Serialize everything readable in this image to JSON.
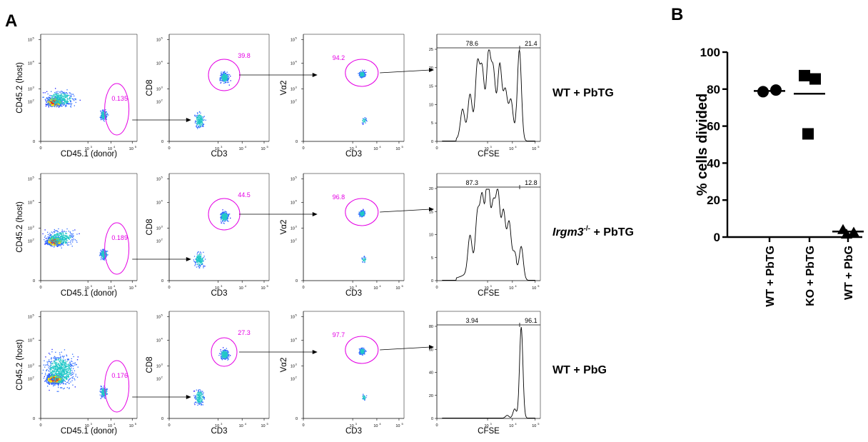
{
  "panels": {
    "a": "A",
    "b": "B"
  },
  "tick_text": {
    "z": "0",
    "p3": "10",
    "e3": "3",
    "p4": "10",
    "e4": "4",
    "p5": "10",
    "e5": "5",
    "p2": "10",
    "e2": "2"
  },
  "rows": [
    {
      "label": "WT + PbTG",
      "italic": "",
      "sup": "",
      "plot1": {
        "xlabel": "CD45.1 (donor)",
        "ylabel": "CD45.2 (host)",
        "gate": "0.135"
      },
      "plot2": {
        "xlabel": "CD3",
        "ylabel": "CD8",
        "gate": "39.8"
      },
      "plot3": {
        "xlabel": "CD3",
        "ylabel": "Vα2",
        "gate": "94.2"
      },
      "hist": {
        "xlabel": "CFSE",
        "left": "78.6",
        "right": "21.4",
        "yticks": [
          "0",
          "5",
          "10",
          "15",
          "20",
          "25"
        ],
        "ymax": 25
      }
    },
    {
      "label": " + PbTG",
      "italic": "Irgm3",
      "sup": "-/-",
      "plot1": {
        "xlabel": "CD45.1 (donor)",
        "ylabel": "CD45.2 (host)",
        "gate": "0.189"
      },
      "plot2": {
        "xlabel": "CD3",
        "ylabel": "CD8",
        "gate": "44.5"
      },
      "plot3": {
        "xlabel": "CD3",
        "ylabel": "Vα2",
        "gate": "96.8"
      },
      "hist": {
        "xlabel": "CFSE",
        "left": "87.3",
        "right": "12.8",
        "yticks": [
          "0",
          "5",
          "10",
          "15",
          "20"
        ],
        "ymax": 20
      }
    },
    {
      "label": "WT + PbG",
      "italic": "",
      "sup": "",
      "plot1": {
        "xlabel": "CD45.1 (donor)",
        "ylabel": "CD45.2 (host)",
        "gate": "0.176"
      },
      "plot2": {
        "xlabel": "CD3",
        "ylabel": "CD8",
        "gate": "27.3"
      },
      "plot3": {
        "xlabel": "CD3",
        "ylabel": "Vα2",
        "gate": "97.7"
      },
      "hist": {
        "xlabel": "CFSE",
        "left": "3.94",
        "right": "96.1",
        "yticks": [
          "0",
          "20",
          "40",
          "60",
          "80"
        ],
        "ymax": 80
      }
    }
  ],
  "chart_data": {
    "type": "scatter",
    "ylabel": "% cells divided",
    "ylim": [
      0,
      100
    ],
    "yticks": [
      0,
      20,
      40,
      60,
      80,
      100
    ],
    "categories": [
      "WT + PbTG",
      "KO + PbTG",
      "WT + PbG"
    ],
    "series": [
      {
        "category": "WT + PbTG",
        "marker": "circle",
        "points": [
          78.6,
          79.5
        ],
        "mean": 79.0
      },
      {
        "category": "KO + PbTG",
        "marker": "square",
        "points": [
          87.3,
          85.5,
          55.8
        ],
        "mean": 77.5
      },
      {
        "category": "WT + PbG",
        "marker": "triangle",
        "points": [
          3.94,
          2.5,
          1.5
        ],
        "mean": 3.0
      }
    ]
  }
}
